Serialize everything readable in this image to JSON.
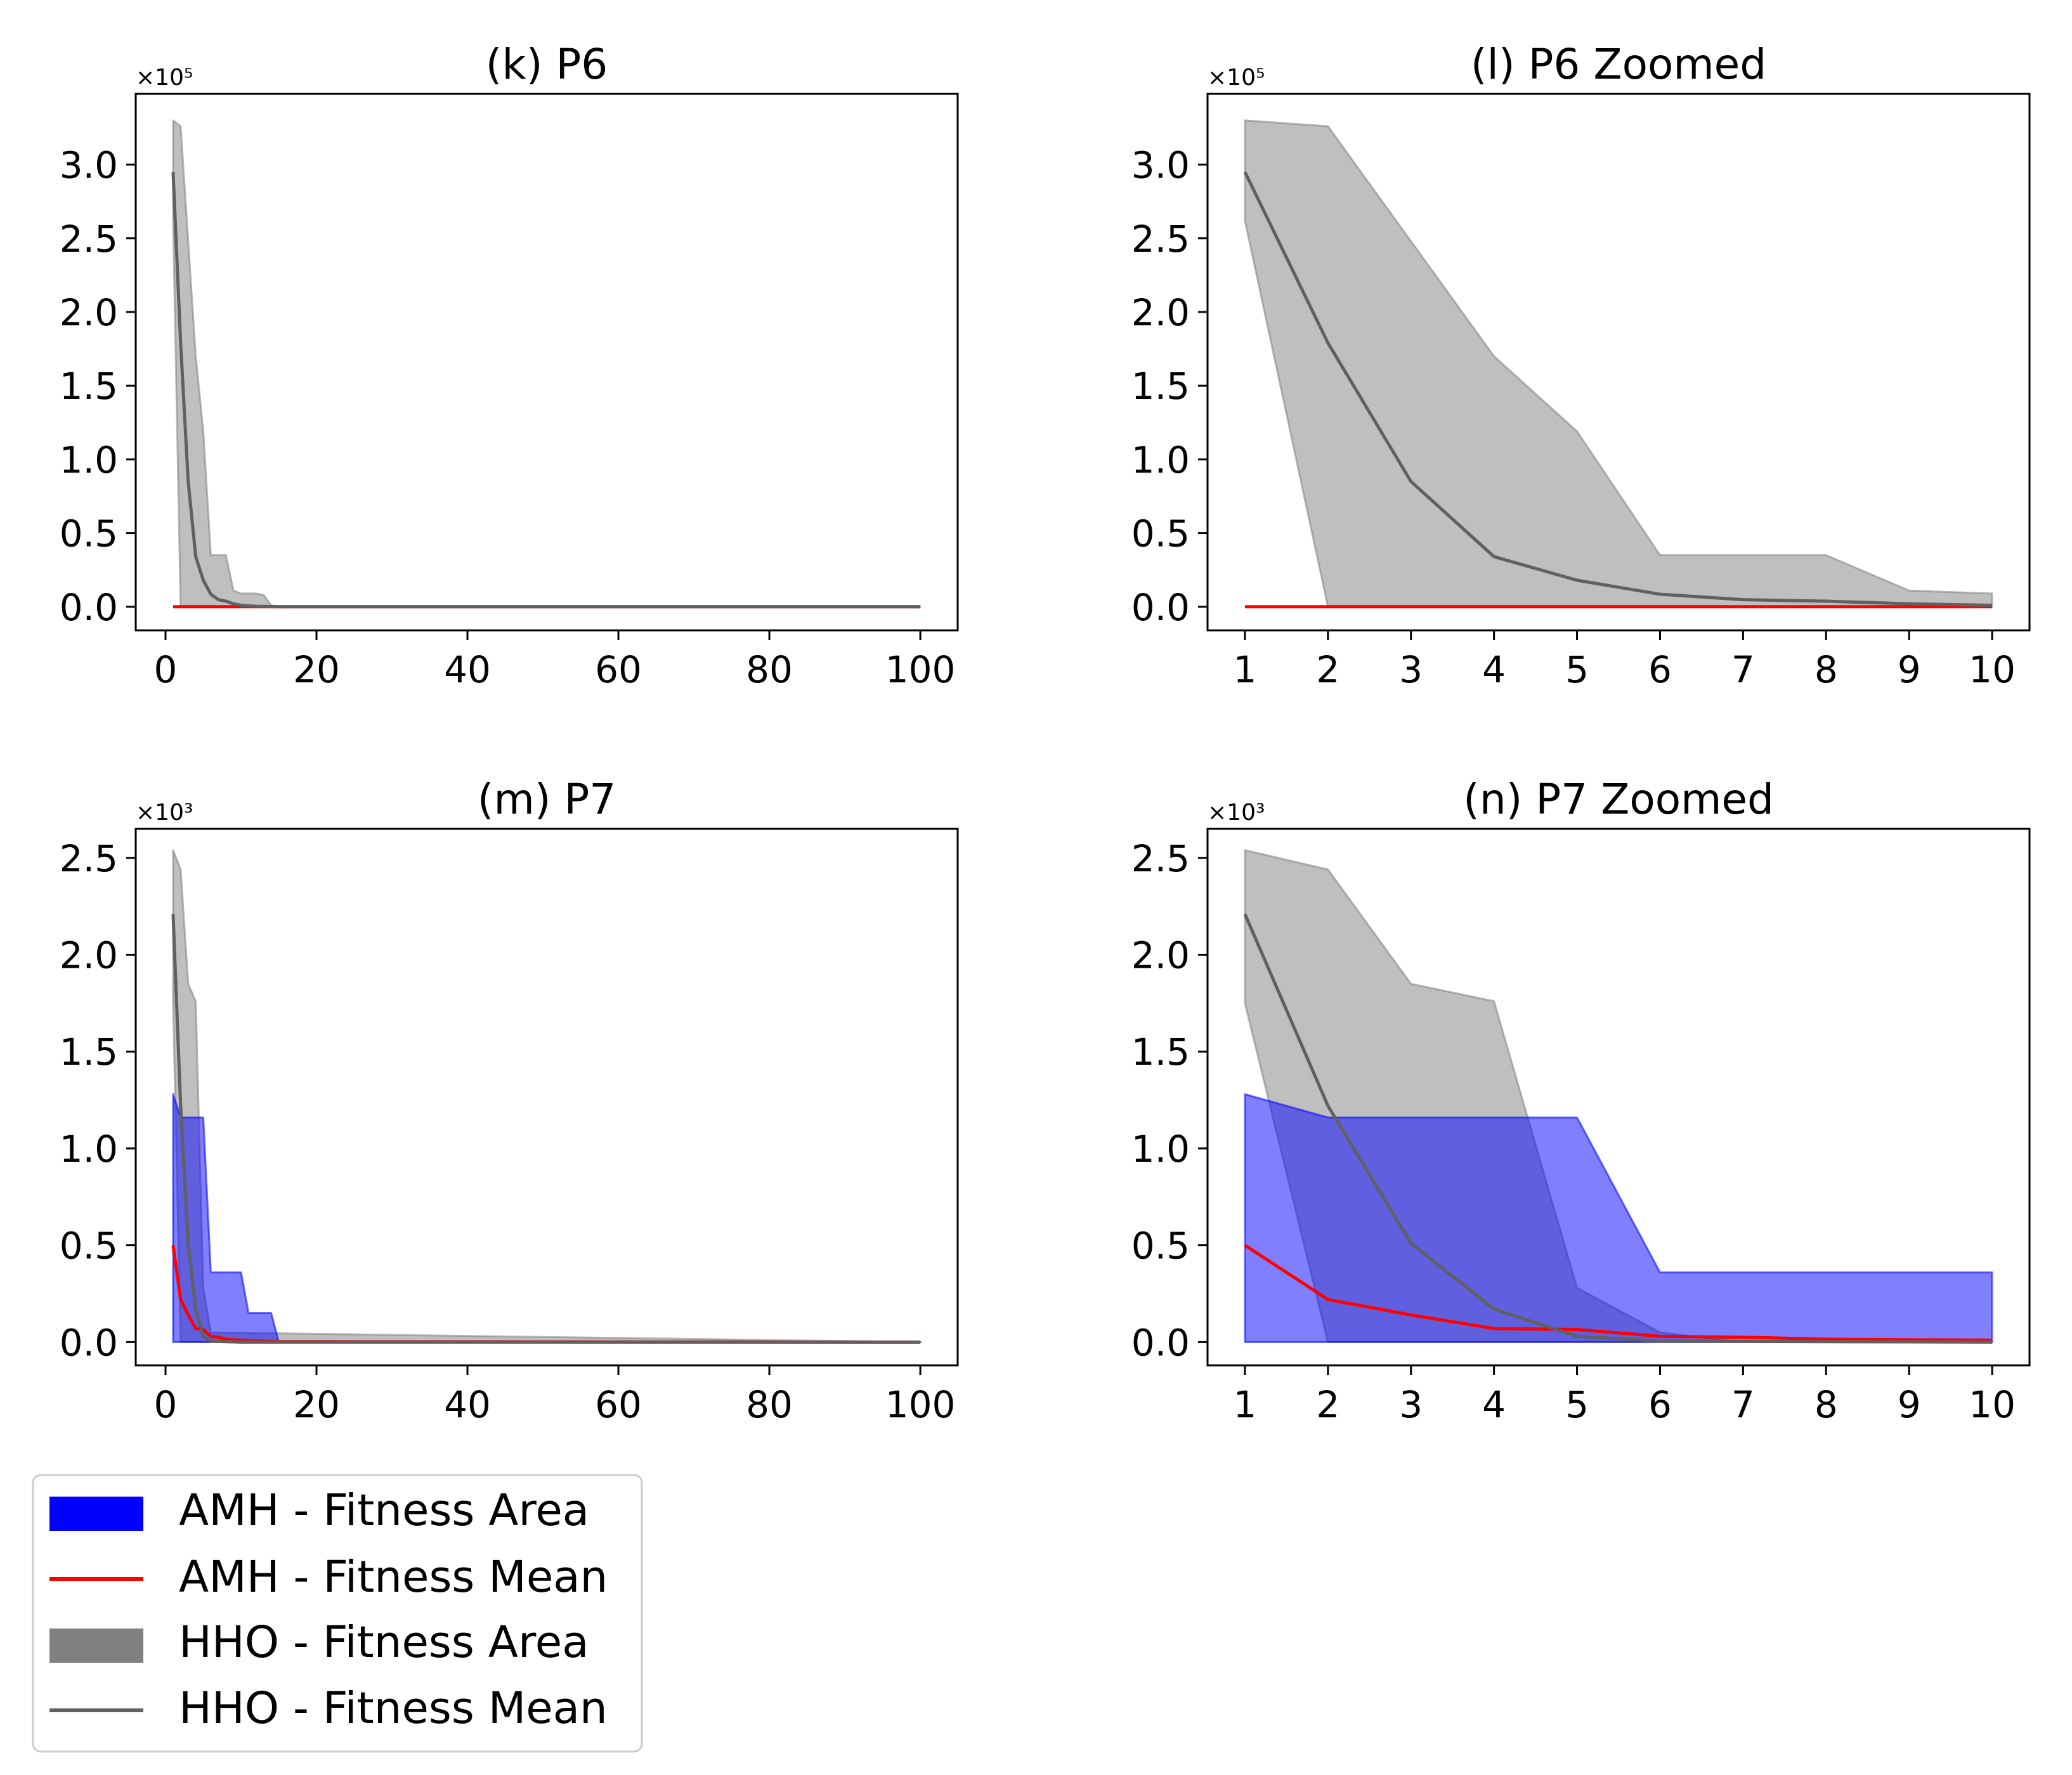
{
  "legend": {
    "placement": "bottom-left",
    "items": [
      {
        "label": "AMH - Fitness Area",
        "kind": "area",
        "color": "#0000ff"
      },
      {
        "label": "AMH - Fitness Mean",
        "kind": "line",
        "color": "#ff0000"
      },
      {
        "label": "HHO - Fitness Area",
        "kind": "area",
        "color": "#808080"
      },
      {
        "label": "HHO - Fitness Mean",
        "kind": "line",
        "color": "#606060"
      }
    ]
  },
  "colors": {
    "amh_area": "#0000ff",
    "amh_mean": "#ff0000",
    "hho_area": "#808080",
    "hho_mean": "#606060"
  },
  "chart_data": [
    {
      "id": "k",
      "type": "area",
      "title": "(k) P6",
      "scale_label": "×10⁵",
      "scale": 100000,
      "xlim": [
        -3.95,
        104.95
      ],
      "ylim": [
        -0.16,
        3.48
      ],
      "xticks": [
        0,
        20,
        40,
        60,
        80,
        100
      ],
      "xticklabels": [
        "0",
        "20",
        "40",
        "60",
        "80",
        "100"
      ],
      "yticks": [
        0,
        0.5,
        1.0,
        1.5,
        2.0,
        2.5,
        3.0
      ],
      "yticklabels": [
        "0.0",
        "0.5",
        "1.0",
        "1.5",
        "2.0",
        "2.5",
        "3.0"
      ],
      "series": [
        {
          "name": "HHO - Fitness Area",
          "kind": "band",
          "x": [
            1,
            2,
            3,
            4,
            5,
            6,
            7,
            8,
            9,
            10,
            11,
            12,
            13,
            14,
            15,
            100
          ],
          "upper": [
            3.3,
            3.26,
            2.48,
            1.7,
            1.19,
            0.35,
            0.35,
            0.35,
            0.11,
            0.09,
            0.09,
            0.09,
            0.08,
            0.01,
            0,
            0
          ],
          "lower": [
            2.62,
            0,
            0,
            0,
            0,
            0,
            0,
            0,
            0,
            0,
            0,
            0,
            0,
            0,
            0,
            0
          ]
        },
        {
          "name": "AMH - Fitness Mean",
          "kind": "line",
          "x": [
            1,
            100
          ],
          "y": [
            0,
            0
          ]
        },
        {
          "name": "HHO - Fitness Mean",
          "kind": "line",
          "x": [
            1,
            2,
            3,
            4,
            5,
            6,
            7,
            8,
            9,
            10,
            12,
            15,
            100
          ],
          "y": [
            2.95,
            1.79,
            0.85,
            0.34,
            0.18,
            0.085,
            0.048,
            0.038,
            0.02,
            0.01,
            0.003,
            0,
            0
          ]
        }
      ]
    },
    {
      "id": "l",
      "type": "area",
      "title": "(l) P6 Zoomed",
      "scale_label": "×10⁵",
      "scale": 100000,
      "xlim": [
        0.55,
        10.45
      ],
      "ylim": [
        -0.16,
        3.48
      ],
      "xticks": [
        1,
        2,
        3,
        4,
        5,
        6,
        7,
        8,
        9,
        10
      ],
      "xticklabels": [
        "1",
        "2",
        "3",
        "4",
        "5",
        "6",
        "7",
        "8",
        "9",
        "10"
      ],
      "yticks": [
        0,
        0.5,
        1.0,
        1.5,
        2.0,
        2.5,
        3.0
      ],
      "yticklabels": [
        "0.0",
        "0.5",
        "1.0",
        "1.5",
        "2.0",
        "2.5",
        "3.0"
      ],
      "series": [
        {
          "name": "HHO - Fitness Area",
          "kind": "band",
          "x": [
            1,
            2,
            3,
            4,
            5,
            6,
            7,
            8,
            9,
            10
          ],
          "upper": [
            3.3,
            3.26,
            2.48,
            1.7,
            1.19,
            0.35,
            0.35,
            0.35,
            0.11,
            0.09
          ],
          "lower": [
            2.62,
            0,
            0,
            0,
            0,
            0,
            0,
            0,
            0,
            0
          ]
        },
        {
          "name": "AMH - Fitness Mean",
          "kind": "line",
          "x": [
            1,
            10
          ],
          "y": [
            0,
            0
          ]
        },
        {
          "name": "HHO - Fitness Mean",
          "kind": "line",
          "x": [
            1,
            2,
            3,
            4,
            5,
            6,
            7,
            8,
            9,
            10
          ],
          "y": [
            2.95,
            1.79,
            0.85,
            0.34,
            0.18,
            0.085,
            0.048,
            0.038,
            0.02,
            0.01
          ]
        }
      ]
    },
    {
      "id": "m",
      "type": "area",
      "title": "(m) P7",
      "scale_label": "×10³",
      "scale": 1000,
      "xlim": [
        -3.95,
        104.95
      ],
      "ylim": [
        -0.12,
        2.65
      ],
      "xticks": [
        0,
        20,
        40,
        60,
        80,
        100
      ],
      "xticklabels": [
        "0",
        "20",
        "40",
        "60",
        "80",
        "100"
      ],
      "yticks": [
        0,
        0.5,
        1.0,
        1.5,
        2.0,
        2.5
      ],
      "yticklabels": [
        "0.0",
        "0.5",
        "1.0",
        "1.5",
        "2.0",
        "2.5"
      ],
      "series": [
        {
          "name": "HHO - Fitness Area",
          "kind": "band",
          "x": [
            1,
            2,
            3,
            4,
            5,
            6,
            100
          ],
          "upper": [
            2.54,
            2.44,
            1.85,
            1.76,
            0.28,
            0.05,
            0
          ],
          "lower": [
            1.75,
            0,
            0,
            0,
            0,
            0,
            0
          ]
        },
        {
          "name": "AMH - Fitness Area",
          "kind": "band",
          "x": [
            1,
            2,
            3,
            4,
            5,
            6,
            7,
            8,
            9,
            10,
            11,
            12,
            13,
            14,
            15,
            100
          ],
          "upper": [
            1.28,
            1.16,
            1.16,
            1.16,
            1.16,
            0.36,
            0.36,
            0.36,
            0.36,
            0.36,
            0.15,
            0.15,
            0.15,
            0.15,
            0,
            0
          ],
          "lower": [
            0,
            0,
            0,
            0,
            0,
            0,
            0,
            0,
            0,
            0,
            0,
            0,
            0,
            0,
            0,
            0
          ]
        },
        {
          "name": "AMH - Fitness Mean",
          "kind": "line",
          "x": [
            1,
            2,
            3,
            4,
            5,
            6,
            7,
            8,
            9,
            10,
            15,
            100
          ],
          "y": [
            0.5,
            0.22,
            0.14,
            0.07,
            0.065,
            0.03,
            0.025,
            0.015,
            0.012,
            0.01,
            0.002,
            0
          ]
        },
        {
          "name": "HHO - Fitness Mean",
          "kind": "line",
          "x": [
            1,
            2,
            3,
            4,
            5,
            6,
            7,
            8,
            9,
            10,
            100
          ],
          "y": [
            2.21,
            1.22,
            0.51,
            0.17,
            0.03,
            0.005,
            0.003,
            0.002,
            0.001,
            0,
            0
          ]
        }
      ]
    },
    {
      "id": "n",
      "type": "area",
      "title": "(n) P7 Zoomed",
      "scale_label": "×10³",
      "scale": 1000,
      "xlim": [
        0.55,
        10.45
      ],
      "ylim": [
        -0.12,
        2.65
      ],
      "xticks": [
        1,
        2,
        3,
        4,
        5,
        6,
        7,
        8,
        9,
        10
      ],
      "xticklabels": [
        "1",
        "2",
        "3",
        "4",
        "5",
        "6",
        "7",
        "8",
        "9",
        "10"
      ],
      "yticks": [
        0,
        0.5,
        1.0,
        1.5,
        2.0,
        2.5
      ],
      "yticklabels": [
        "0.0",
        "0.5",
        "1.0",
        "1.5",
        "2.0",
        "2.5"
      ],
      "series": [
        {
          "name": "HHO - Fitness Area",
          "kind": "band",
          "x": [
            1,
            2,
            3,
            4,
            5,
            6,
            7,
            8,
            9,
            10
          ],
          "upper": [
            2.54,
            2.44,
            1.85,
            1.76,
            0.28,
            0.05,
            0,
            0,
            0,
            0
          ],
          "lower": [
            1.75,
            0,
            0,
            0,
            0,
            0,
            0,
            0,
            0,
            0
          ]
        },
        {
          "name": "AMH - Fitness Area",
          "kind": "band",
          "x": [
            1,
            2,
            3,
            4,
            5,
            6,
            7,
            8,
            9,
            10
          ],
          "upper": [
            1.28,
            1.16,
            1.16,
            1.16,
            1.16,
            0.36,
            0.36,
            0.36,
            0.36,
            0.36
          ],
          "lower": [
            0,
            0,
            0,
            0,
            0,
            0,
            0,
            0,
            0,
            0
          ]
        },
        {
          "name": "AMH - Fitness Mean",
          "kind": "line",
          "x": [
            1,
            2,
            3,
            4,
            5,
            6,
            7,
            8,
            9,
            10
          ],
          "y": [
            0.5,
            0.22,
            0.14,
            0.07,
            0.065,
            0.03,
            0.025,
            0.015,
            0.012,
            0.01
          ]
        },
        {
          "name": "HHO - Fitness Mean",
          "kind": "line",
          "x": [
            1,
            2,
            3,
            4,
            5,
            6,
            7,
            8,
            9,
            10
          ],
          "y": [
            2.21,
            1.22,
            0.51,
            0.17,
            0.03,
            0.005,
            0.003,
            0.002,
            0.001,
            0
          ]
        }
      ]
    }
  ]
}
